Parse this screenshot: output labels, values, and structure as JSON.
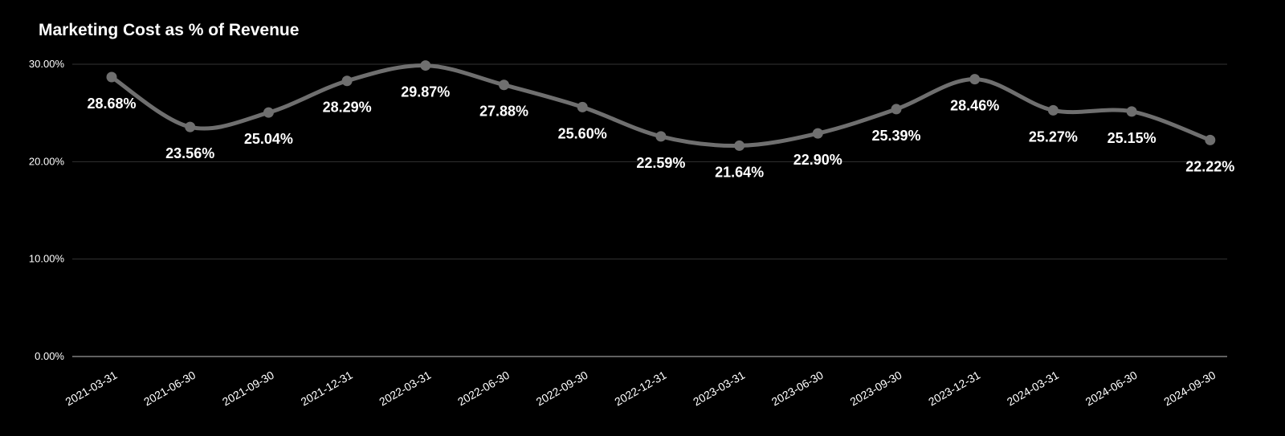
{
  "chart_data": {
    "type": "line",
    "title": "Marketing Cost as % of Revenue",
    "categories": [
      "2021-03-31",
      "2021-06-30",
      "2021-09-30",
      "2021-12-31",
      "2022-03-31",
      "2022-06-30",
      "2022-09-30",
      "2022-12-31",
      "2023-03-31",
      "2023-06-30",
      "2023-09-30",
      "2023-12-31",
      "2024-03-31",
      "2024-06-30",
      "2024-09-30"
    ],
    "series": [
      {
        "values": [
          28.68,
          23.56,
          25.04,
          28.29,
          29.87,
          27.88,
          25.6,
          22.59,
          21.64,
          22.9,
          25.39,
          28.46,
          25.27,
          25.15,
          22.22
        ],
        "labels": [
          "28.68%",
          "23.56%",
          "25.04%",
          "28.29%",
          "29.87%",
          "27.88%",
          "25.60%",
          "22.59%",
          "21.64%",
          "22.90%",
          "25.39%",
          "28.46%",
          "25.27%",
          "25.15%",
          "22.22%"
        ]
      }
    ],
    "yticks": [
      "0.00%",
      "10.00%",
      "20.00%",
      "30.00%"
    ],
    "ylim": [
      0,
      30
    ],
    "smooth": true,
    "grid": true,
    "colors": {
      "background": "#000000",
      "line": "#6f6f6f",
      "text": "#ffffff",
      "grid": "#333333",
      "axis": "#bfbfbf"
    }
  }
}
